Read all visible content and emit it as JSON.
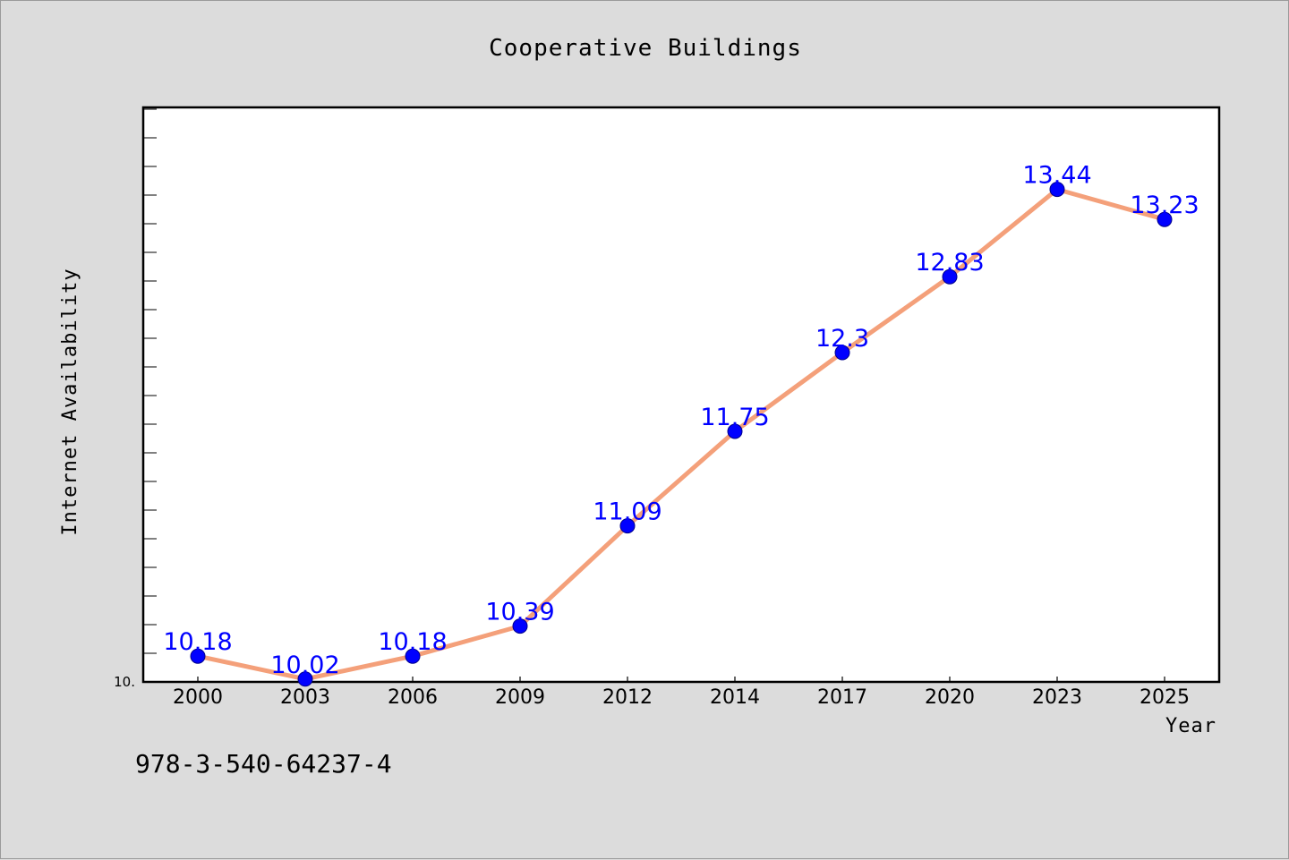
{
  "chart_data": {
    "type": "line",
    "title": "Cooperative Buildings",
    "xlabel": "Year",
    "ylabel": "Internet Availability",
    "categories": [
      "2000",
      "2003",
      "2006",
      "2009",
      "2012",
      "2014",
      "2017",
      "2020",
      "2023",
      "2025"
    ],
    "series": [
      {
        "values": [
          10.18,
          10.02,
          10.18,
          10.39,
          11.09,
          11.75,
          12.3,
          12.83,
          13.44,
          13.23
        ],
        "data_labels": [
          "10.18",
          "10.02",
          "10.18",
          "10.39",
          "11.09",
          "11.75",
          "12.3",
          "12.83",
          "13.44",
          "13.23"
        ]
      }
    ],
    "ylim": [
      10.0,
      14.0
    ],
    "y_tick_labels": [
      "10."
    ],
    "grid": false,
    "legend": "none",
    "colors": {
      "line": "#f4a07a",
      "marker": "#0000ff",
      "marker_edge": "#00008b",
      "data_label": "#0000ff",
      "plot_background": "#ffffff",
      "figure_background": "#dcdcdc"
    }
  },
  "caption": "978-3-540-64237-4"
}
